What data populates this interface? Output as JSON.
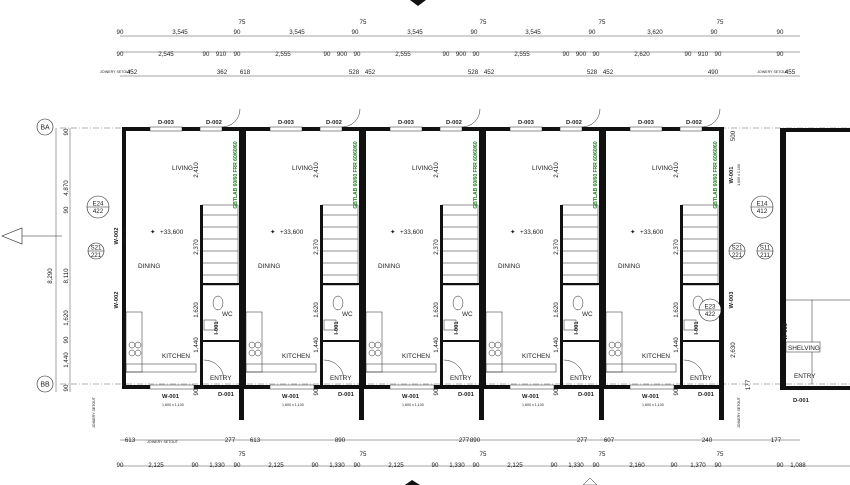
{
  "grid_rows": {
    "top": "BA",
    "bottom": "BB"
  },
  "dims_top_row1": [
    "90",
    "3,545",
    "90",
    "3,545",
    "90",
    "3,545",
    "90",
    "3,545",
    "90",
    "3,620",
    "90",
    "90"
  ],
  "dims_top_row1_mid": [
    "75",
    "75",
    "75",
    "75",
    "75"
  ],
  "dims_top_row2": [
    "90",
    "2,545",
    "90",
    "910",
    "90",
    "2,555",
    "90",
    "900",
    "90",
    "2,555",
    "90",
    "900",
    "90",
    "2,555",
    "90",
    "900",
    "90",
    "2,620",
    "90",
    "910",
    "90",
    "90"
  ],
  "joinery_top": {
    "label": "JOINERY SETOUT",
    "values": [
      "452",
      "362",
      "618",
      "528",
      "452",
      "528",
      "452",
      "528",
      "452",
      "490",
      "455"
    ]
  },
  "dims_left_vertical": [
    "90",
    "4,870",
    "90",
    "8,110",
    "8,290",
    "1,620",
    "90",
    "1,440",
    "90"
  ],
  "dims_right_vertical": [
    "2,630",
    "500",
    "177"
  ],
  "units": [
    {
      "living": "LIVING",
      "dining": "DINING",
      "kitchen": "KITCHEN",
      "wc": "WC",
      "entry": "ENTRY",
      "level": "+33,600",
      "doors": [
        "D-003",
        "D-002",
        "D-001"
      ],
      "window_bottom": "W-001",
      "window_bottom_size": "1,600 x 1,100",
      "dims": [
        "2,410",
        "2,370",
        "1,620",
        "1,440",
        "90"
      ]
    },
    {
      "living": "LIVING",
      "dining": "DINING",
      "kitchen": "KITCHEN",
      "wc": "WC",
      "entry": "ENTRY",
      "level": "+33,600",
      "doors": [
        "D-003",
        "D-002",
        "D-001"
      ],
      "window_bottom": "W-001",
      "window_bottom_size": "1,600 x 1,100",
      "dims": [
        "2,410",
        "2,370",
        "1,620",
        "1,440",
        "90"
      ]
    },
    {
      "living": "LIVING",
      "dining": "DINING",
      "kitchen": "KITCHEN",
      "wc": "WC",
      "entry": "ENTRY",
      "level": "+33,600",
      "doors": [
        "D-003",
        "D-002",
        "D-001"
      ],
      "window_bottom": "W-001",
      "window_bottom_size": "1,600 x 1,100",
      "dims": [
        "2,410",
        "2,370",
        "1,620",
        "1,440",
        "90"
      ]
    },
    {
      "living": "LIVING",
      "dining": "DINING",
      "kitchen": "KITCHEN",
      "wc": "WC",
      "entry": "ENTRY",
      "level": "+33,600",
      "doors": [
        "D-003",
        "D-002",
        "D-001"
      ],
      "window_bottom": "W-001",
      "window_bottom_size": "1,600 x 1,100",
      "dims": [
        "2,410",
        "2,370",
        "1,620",
        "1,440",
        "90"
      ]
    },
    {
      "living": "LIVING",
      "dining": "DINING",
      "kitchen": "KITCHEN",
      "wc": "WC",
      "entry": "ENTRY",
      "level": "+33,600",
      "doors": [
        "D-003",
        "D-002",
        "D-001"
      ],
      "window_bottom": "W-001",
      "window_bottom_size": "1,600 x 1,100",
      "dims": [
        "2,410",
        "2,370",
        "1,620",
        "1,440",
        "90"
      ]
    }
  ],
  "fire_wall_label": "GBTLAB 60/60 FRR 60/60/60",
  "windows": {
    "w002": "W-002",
    "w002_size": "600 x 1,200",
    "w001_side": "W-001",
    "w001_side_size": "1,600 x 1,100",
    "w003": "W-003",
    "i001": "I-001"
  },
  "section_tags": [
    {
      "code": "E24",
      "sheet": "422"
    },
    {
      "code": "S21",
      "sheet": "221"
    },
    {
      "code": "S21",
      "sheet": "221"
    },
    {
      "code": "S11",
      "sheet": "211"
    },
    {
      "code": "E23",
      "sheet": "422"
    },
    {
      "code": "E14",
      "sheet": "412"
    }
  ],
  "partial_unit": {
    "shelving": "SHELVING",
    "entry": "ENTRY",
    "door": "D-001",
    "window": "W-001",
    "window2": "W-003"
  },
  "joinery_bottom": {
    "label": "JOINERY SETOUT",
    "values": [
      "613",
      "277",
      "613",
      "890",
      "277",
      "890",
      "277",
      "607",
      "240",
      "177"
    ]
  },
  "dims_bottom_mid": [
    "75",
    "75",
    "75",
    "75",
    "75"
  ],
  "dims_bottom": [
    "90",
    "2,125",
    "90",
    "1,330",
    "90",
    "2,125",
    "90",
    "1,330",
    "90",
    "2,125",
    "90",
    "1,330",
    "90",
    "2,125",
    "90",
    "1,330",
    "90",
    "2,160",
    "90",
    "1,370",
    "90",
    "90",
    "1,088"
  ],
  "joinery_setout_vertical": "JOINERY SETOUT"
}
